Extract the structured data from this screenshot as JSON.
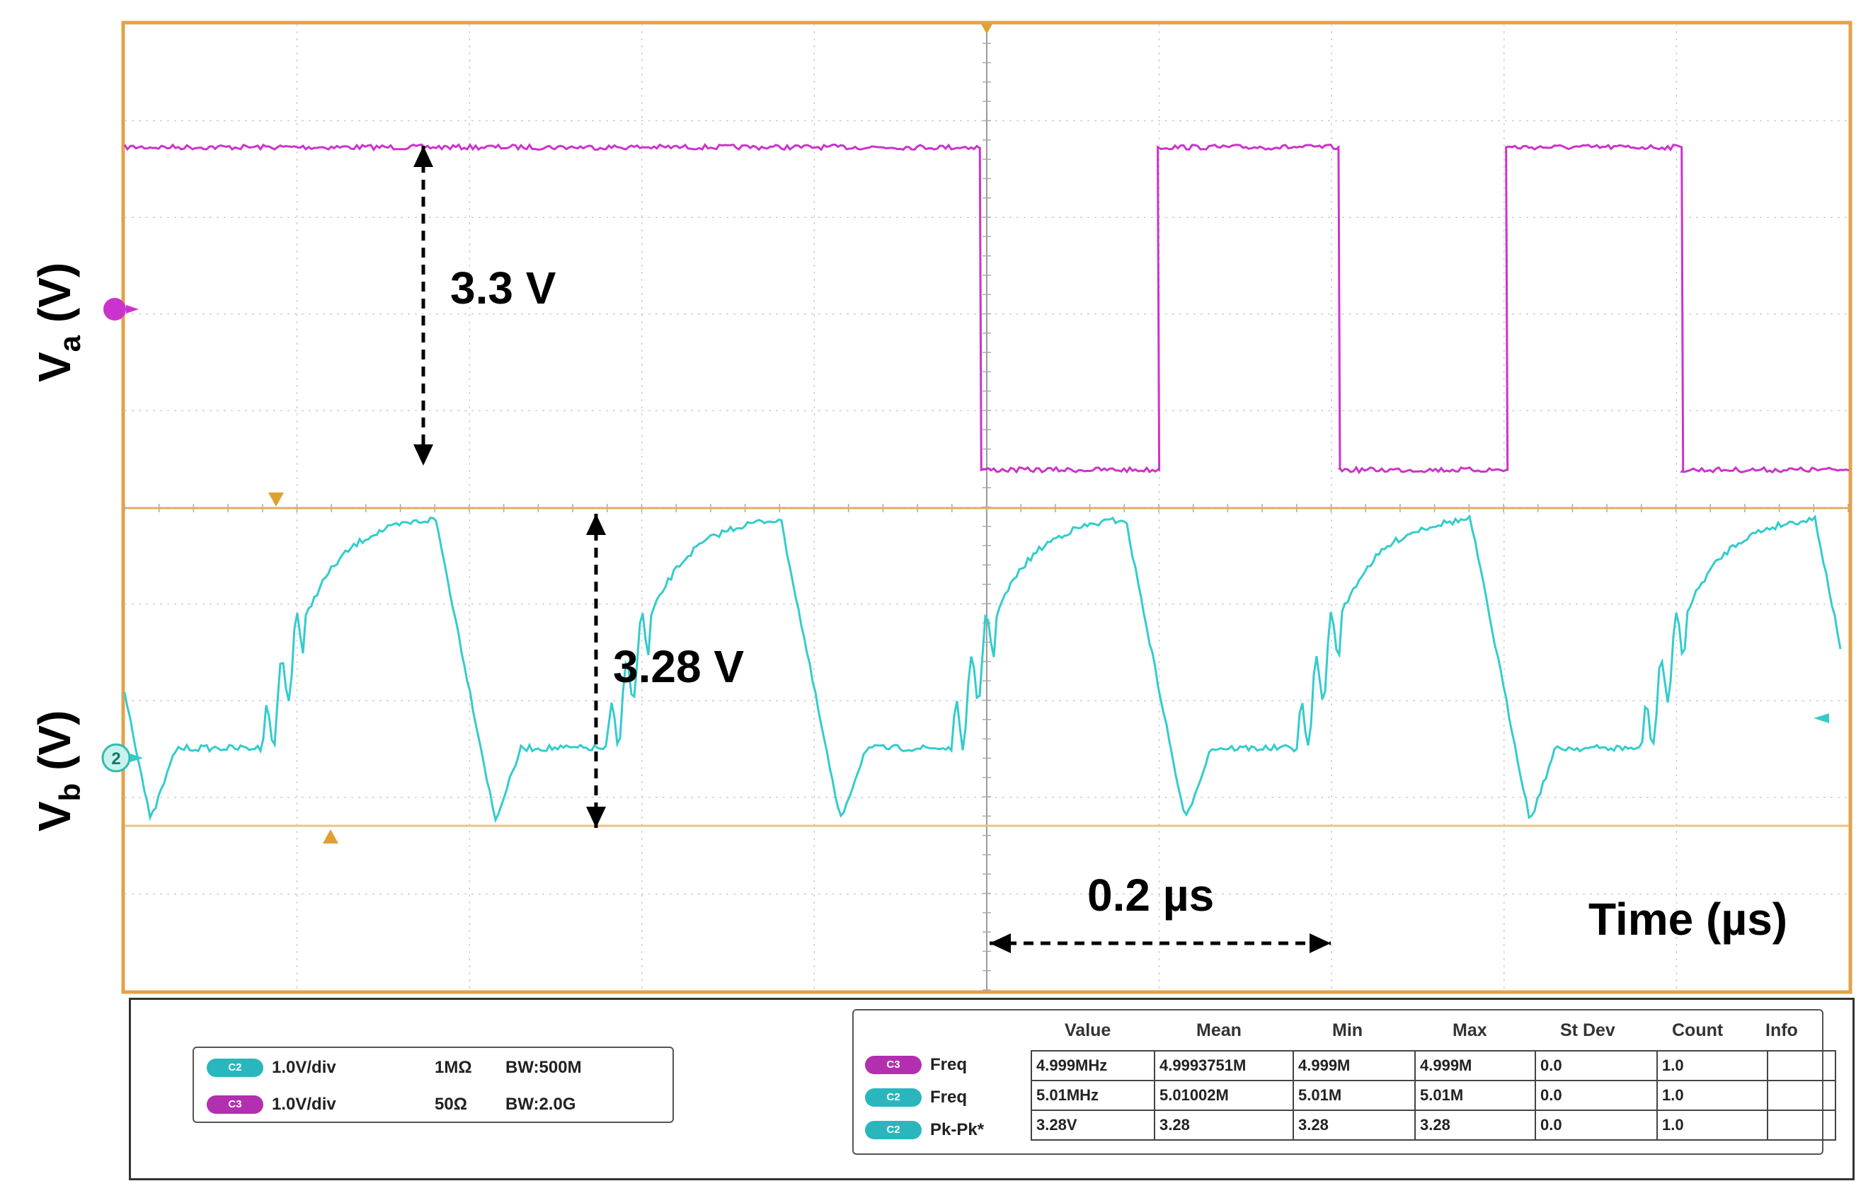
{
  "chart_data": {
    "type": "line",
    "title": "",
    "xlabel": "Time (µs)",
    "ylabel": "",
    "traces": [
      {
        "name": "Va",
        "axis_label": "Va (V)",
        "color": "#cc33cc",
        "shape": "square",
        "period_us": 0.2,
        "high_v": 3.3,
        "low_v": 0.0,
        "amplitude_label": "3.3 V",
        "edges_us": [
          -0.004,
          0.1,
          0.204,
          0.302,
          0.403,
          0.501,
          0.602,
          0.7,
          0.802,
          0.904
        ]
      },
      {
        "name": "Vb",
        "axis_label": "Vb (V)",
        "color": "#33cccc",
        "shape": "rc-like",
        "period_us": 0.2,
        "peak_v": 3.28,
        "trough_v": 0.0,
        "amplitude_label": "3.28 V",
        "peak_times_us": [
          0.08,
          0.28,
          0.48,
          0.68,
          0.88
        ],
        "trough_times_us": [
          0.118,
          0.318,
          0.518,
          0.718,
          0.918
        ]
      }
    ],
    "x_range_us": [
      -0.5,
      0.5
    ],
    "grid": true,
    "time_annotation": "0.2 µs",
    "ch_marker": "2"
  },
  "scope_info": {
    "channels": [
      {
        "badge": "C2",
        "color": "#29b7bd",
        "scale": "1.0V/div",
        "impedance": "1MΩ",
        "bw": "BW:500M"
      },
      {
        "badge": "C3",
        "color": "#b22fb0",
        "scale": "1.0V/div",
        "impedance": "50Ω",
        "bw": "BW:2.0G"
      }
    ],
    "measure_headers": [
      "Value",
      "Mean",
      "Min",
      "Max",
      "St Dev",
      "Count",
      "Info"
    ],
    "measurements": [
      {
        "badge": "C3",
        "color": "#b22fb0",
        "label": "Freq",
        "cells": [
          "4.999MHz",
          "4.9993751M",
          "4.999M",
          "4.999M",
          "0.0",
          "1.0",
          ""
        ]
      },
      {
        "badge": "C2",
        "color": "#29b7bd",
        "label": "Freq",
        "cells": [
          "5.01MHz",
          "5.01002M",
          "5.01M",
          "5.01M",
          "0.0",
          "1.0",
          ""
        ]
      },
      {
        "badge": "C2",
        "color": "#29b7bd",
        "label": "Pk-Pk*",
        "cells": [
          "3.28V",
          "3.28",
          "3.28",
          "3.28",
          "0.0",
          "1.0",
          ""
        ]
      }
    ]
  }
}
